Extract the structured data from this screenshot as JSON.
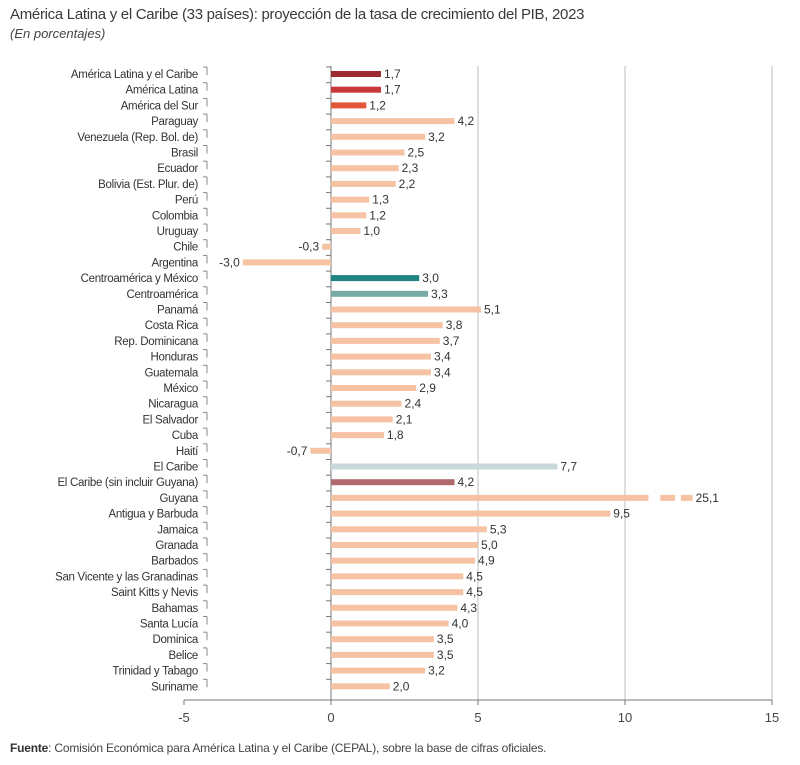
{
  "chart_data": {
    "type": "bar",
    "orientation": "horizontal",
    "title": "América Latina y el Caribe (33 países): proyección de la tasa de crecimiento del PIB, 2023",
    "subtitle": "(En porcentajes)",
    "xlim": [
      -5,
      15
    ],
    "xticks": [
      "-5",
      "0",
      "5",
      "10",
      "15"
    ],
    "grid": "vertical",
    "axis_break": "Guyana bar truncated with dashed segment",
    "categories": [
      "América Latina y el Caribe",
      "América Latina",
      "América del Sur",
      "Paraguay",
      "Venezuela (Rep. Bol. de)",
      "Brasil",
      "Ecuador",
      "Bolivia (Est. Plur. de)",
      "Perú",
      "Colombia",
      "Uruguay",
      "Chile",
      "Argentina",
      "Centroamérica y México",
      "Centroamérica",
      "Panamá",
      "Costa Rica",
      "Rep. Dominicana",
      "Honduras",
      "Guatemala",
      "México",
      "Nicaragua",
      "El Salvador",
      "Cuba",
      "Haití",
      "El Caribe",
      "El Caribe (sin incluir Guyana)",
      "Guyana",
      "Antigua y Barbuda",
      "Jamaica",
      "Granada",
      "Barbados",
      "San Vicente y las Granadinas",
      "Saint Kitts y Nevis",
      "Bahamas",
      "Santa Lucía",
      "Dominica",
      "Belice",
      "Trinidad y Tabago",
      "Suriname"
    ],
    "values": [
      1.7,
      1.7,
      1.2,
      4.2,
      3.2,
      2.5,
      2.3,
      2.2,
      1.3,
      1.2,
      1.0,
      -0.3,
      -3.0,
      3.0,
      3.3,
      5.1,
      3.8,
      3.7,
      3.4,
      3.4,
      2.9,
      2.4,
      2.1,
      1.8,
      -0.7,
      7.7,
      4.2,
      25.1,
      9.5,
      5.3,
      5.0,
      4.9,
      4.5,
      4.5,
      4.3,
      4.0,
      3.5,
      3.5,
      3.2,
      2.0
    ],
    "labels": [
      "1,7",
      "1,7",
      "1,2",
      "4,2",
      "3,2",
      "2,5",
      "2,3",
      "2,2",
      "1,3",
      "1,2",
      "1,0",
      "-0,3",
      "-3,0",
      "3,0",
      "3,3",
      "5,1",
      "3,8",
      "3,7",
      "3,4",
      "3,4",
      "2,9",
      "2,4",
      "2,1",
      "1,8",
      "-0,7",
      "7,7",
      "4,2",
      "25,1",
      "9,5",
      "5,3",
      "5,0",
      "4,9",
      "4,5",
      "4,5",
      "4,3",
      "4,0",
      "3,5",
      "3,5",
      "3,2",
      "2,0"
    ],
    "colors": {
      "América Latina y el Caribe": "#9e2a2f",
      "América Latina": "#c9373a",
      "América del Sur": "#e2573a",
      "Centroamérica y México": "#1f8483",
      "Centroamérica": "#7aaaa6",
      "El Caribe": "#c9d8da",
      "El Caribe (sin incluir Guyana)": "#b0686c",
      "default": "#f5c3a4"
    }
  },
  "source": {
    "label": "Fuente",
    "text": ":  Comisión Económica para América Latina y el Caribe (CEPAL), sobre la base de cifras oficiales."
  }
}
